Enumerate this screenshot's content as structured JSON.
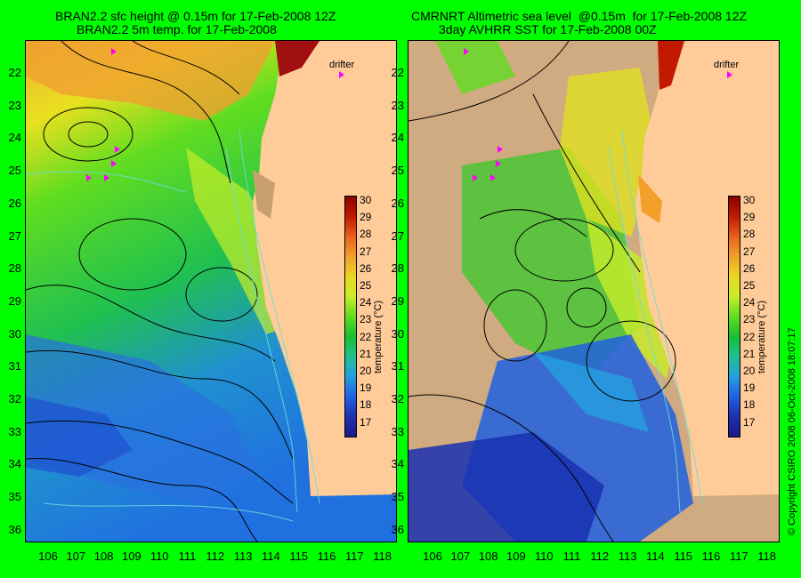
{
  "titles": {
    "left_line1": "BRAN2.2 sfc height @ 0.15m for 17-Feb-2008 12Z",
    "left_line2": "BRAN2.2 5m temp. for 17-Feb-2008",
    "right_line1": "CMRNRT Altimetric sea level  @0.15m  for 17-Feb-2008 12Z",
    "right_line2": "3day AVHRR SST for 17-Feb-2008 00Z"
  },
  "drifter_label": "drifter",
  "lat_ticks": [
    "22",
    "23",
    "24",
    "25",
    "26",
    "27",
    "28",
    "29",
    "30",
    "31",
    "32",
    "33",
    "34",
    "35",
    "36"
  ],
  "lon_ticks": [
    "106",
    "107",
    "108",
    "109",
    "110",
    "111",
    "112",
    "113",
    "114",
    "115",
    "116",
    "117",
    "118"
  ],
  "colorbar": {
    "ticks": [
      "30",
      "29",
      "28",
      "27",
      "26",
      "25",
      "24",
      "23",
      "22",
      "21",
      "20",
      "19",
      "18",
      "17"
    ],
    "label": "temperature (°C)",
    "colors": [
      "#8b0000",
      "#c21a00",
      "#e8601c",
      "#f2a02a",
      "#e8d820",
      "#c8ee28",
      "#60dd20",
      "#18c030",
      "#20c090",
      "#24a0e0",
      "#2060e0",
      "#2030b0",
      "#1a1a88"
    ]
  },
  "copyright": "© Copyright CSIRO 2008    06-Oct-2008 18:07:17",
  "colors": {
    "background": "#00ff00",
    "land": "#ffcc99",
    "nodata": "#d0aa80",
    "contour": "#000000",
    "isobath": "#66dddd",
    "drifter": "#ff00ff"
  }
}
